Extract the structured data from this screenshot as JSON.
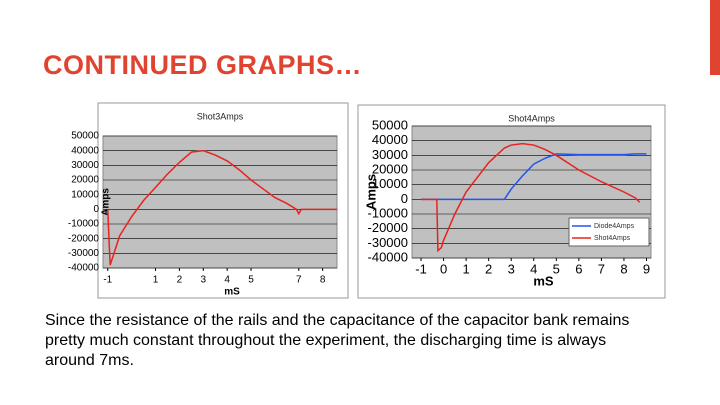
{
  "slide_title": "CONTINUED GRAPHS…",
  "body_text": "Since the resistance of the rails and the capacitance of the capacitor bank remains pretty much constant throughout the experiment, the discharging time is always around 7ms.",
  "chart_data": [
    {
      "type": "line",
      "title": "Shot3Amps",
      "xlabel": "mS",
      "ylabel": "Amps",
      "x": [
        -1,
        -0.95,
        -0.9,
        -0.7,
        -0.5,
        0,
        0.5,
        1,
        1.5,
        2,
        2.5,
        3,
        3.5,
        4,
        4.5,
        5,
        5.5,
        6,
        6.5,
        6.9,
        7,
        7.1,
        7.5,
        8,
        8.6
      ],
      "values": [
        0,
        -20000,
        -38000,
        -28000,
        -18000,
        -5000,
        6000,
        15000,
        24000,
        32000,
        39000,
        40000,
        37000,
        33000,
        27000,
        20000,
        14000,
        8000,
        4000,
        0,
        -3000,
        0,
        0,
        0,
        0
      ],
      "color": "#e8231f",
      "xlim": [
        -1.2,
        8.6
      ],
      "ylim": [
        -40000,
        50000
      ],
      "xticks": [
        -1,
        1,
        2,
        3,
        4,
        5,
        7,
        8
      ],
      "yticks": [
        -40000,
        -30000,
        -20000,
        -10000,
        0,
        10000,
        20000,
        30000,
        40000,
        50000
      ],
      "grid": true
    },
    {
      "type": "line",
      "title": "Shot4Amps",
      "xlabel": "mS",
      "ylabel": "Amps",
      "x": [
        -1,
        -0.3,
        -0.25,
        -0.1,
        0,
        0.5,
        1,
        2,
        2.7,
        3,
        3.5,
        4,
        4.5,
        5,
        6,
        7,
        8,
        8.5,
        8.7,
        9
      ],
      "series": [
        {
          "name": "Diode4Amps",
          "color": "#2255ee",
          "values": [
            0,
            0,
            0,
            0,
            0,
            0,
            0,
            0,
            0,
            7000,
            16000,
            24000,
            28000,
            31000,
            30500,
            30500,
            30500,
            31000,
            31000,
            31000
          ]
        },
        {
          "name": "Shot4Amps",
          "color": "#e8231f",
          "values": [
            0,
            0,
            -35000,
            -33000,
            -28000,
            -10000,
            5000,
            25000,
            35000,
            37000,
            38000,
            37000,
            34000,
            30000,
            20000,
            12000,
            5000,
            1000,
            -2000,
            null
          ]
        }
      ],
      "xlim": [
        -1.4,
        9.2
      ],
      "ylim": [
        -40000,
        50000
      ],
      "xticks": [
        -1,
        0,
        1,
        2,
        3,
        4,
        5,
        6,
        7,
        8,
        9
      ],
      "yticks": [
        -40000,
        -30000,
        -20000,
        -10000,
        0,
        10000,
        20000,
        30000,
        40000,
        50000
      ],
      "grid": true,
      "legend": "lower right"
    }
  ]
}
